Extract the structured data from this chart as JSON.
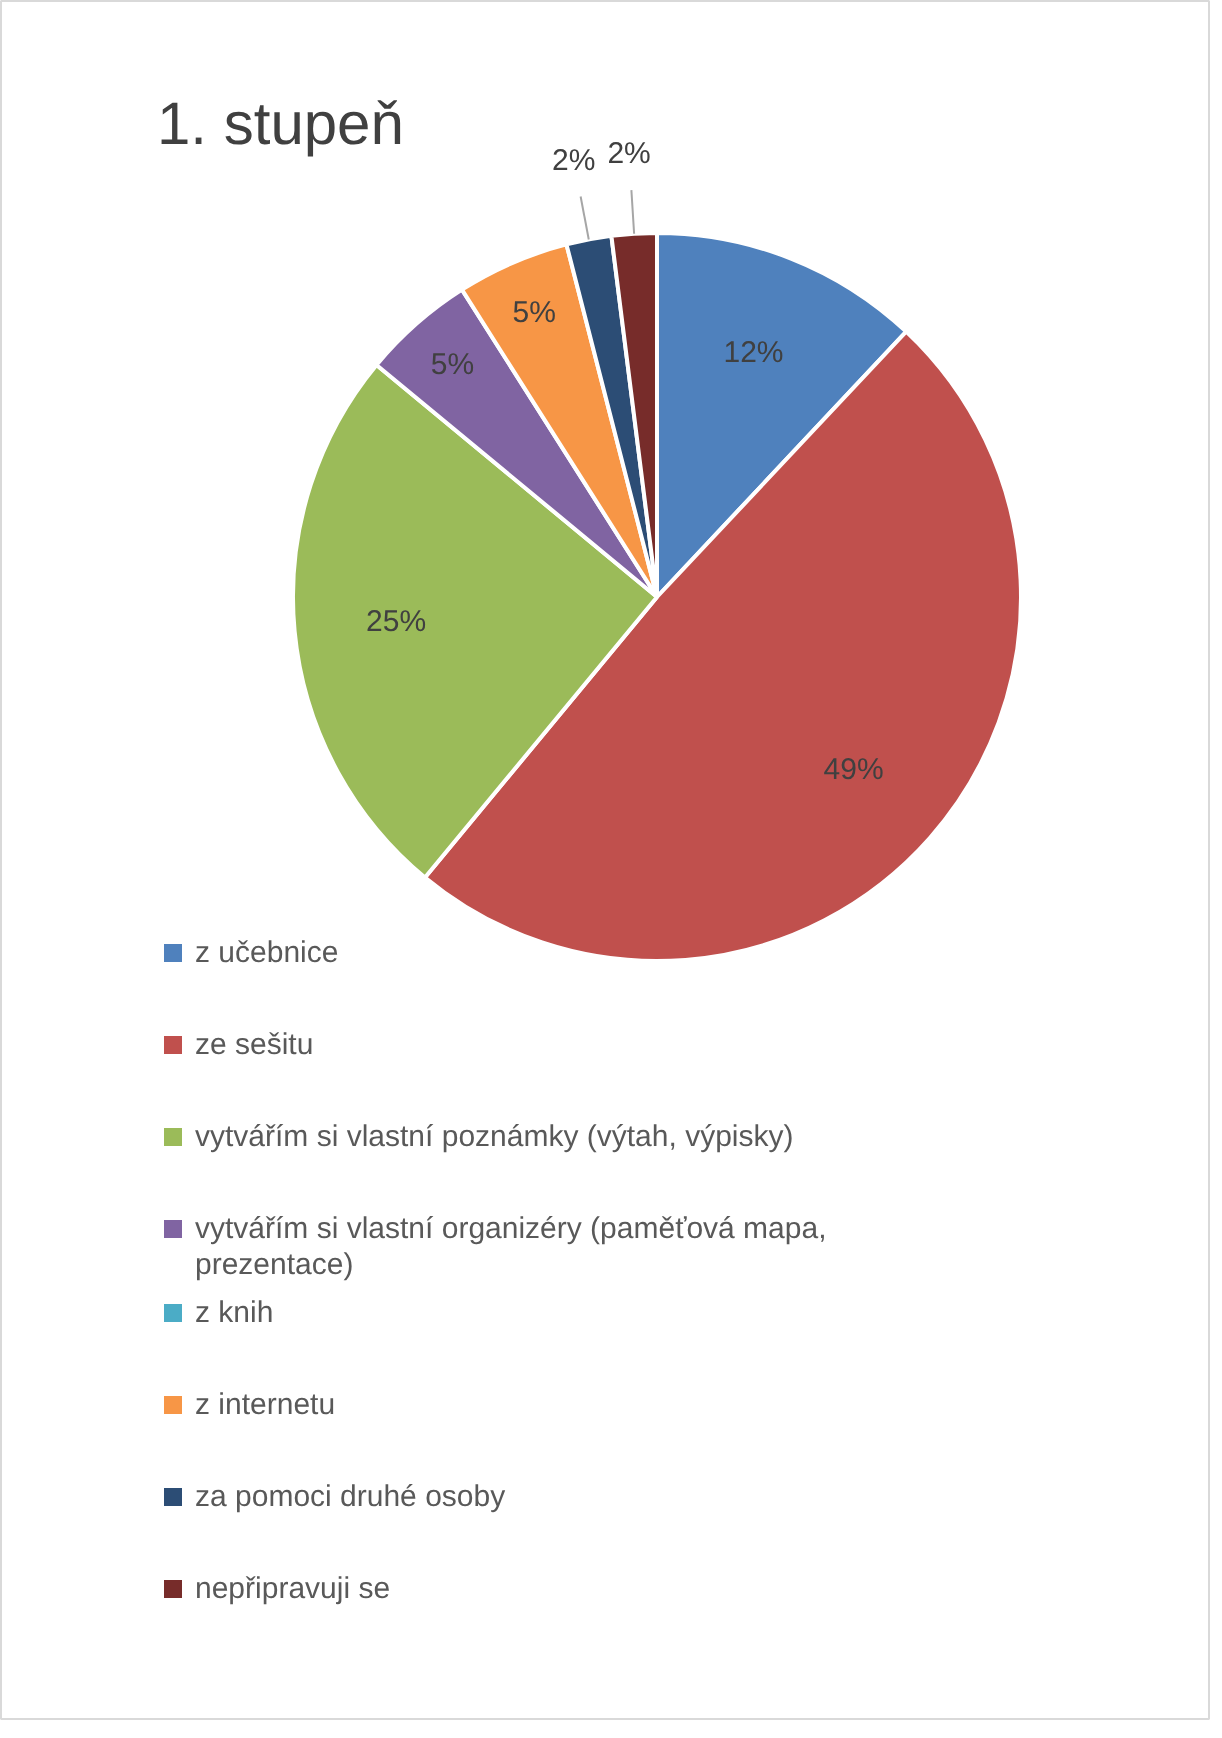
{
  "chart_data": {
    "type": "pie",
    "title": "1. stupeň",
    "categories": [
      "z učebnice",
      "ze sešitu",
      "vytvářím si vlastní poznámky (výtah, výpisky)",
      "vytvářím si vlastní organizéry (paměťová mapa, prezentace)",
      "z knih",
      "z internetu",
      "za pomoci druhé osoby",
      "nepřipravuji se"
    ],
    "values": [
      12,
      49,
      25,
      5,
      0,
      5,
      2,
      2
    ],
    "value_labels": [
      "12%",
      "49%",
      "25%",
      "5%",
      null,
      "5%",
      "2%",
      "2%"
    ],
    "colors": [
      "#4f81bd",
      "#c0504d",
      "#9bbb59",
      "#8064a2",
      "#4bacc6",
      "#f79646",
      "#2c4d75",
      "#772c2a"
    ],
    "legend": "bottom"
  }
}
